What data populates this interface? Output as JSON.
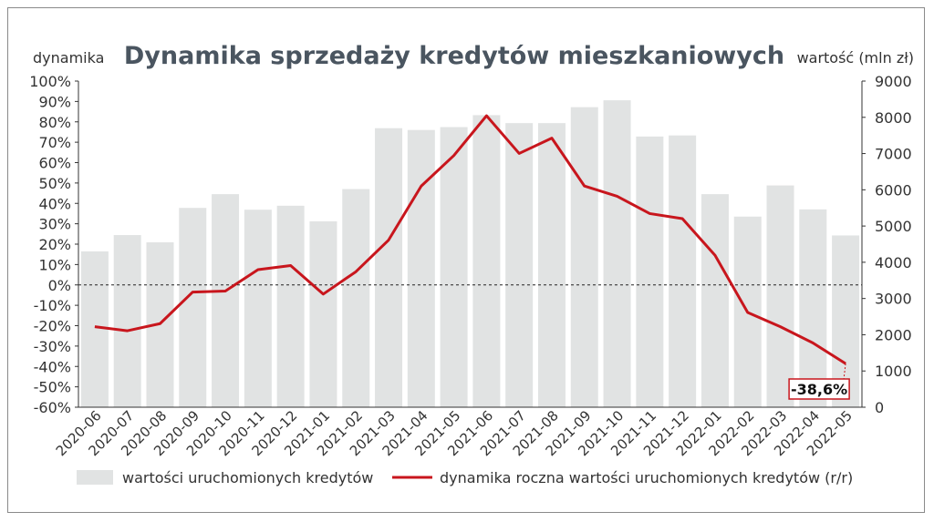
{
  "chart_data": {
    "type": "bar+line",
    "title": "Dynamika sprzedaży kredytów mieszkaniowych",
    "ylabel_left": "dynamika",
    "ylabel_right": "wartość (mln zł)",
    "categories": [
      "2020-06",
      "2020-07",
      "2020-08",
      "2020-09",
      "2020-10",
      "2020-11",
      "2020-12",
      "2021-01",
      "2021-02",
      "2021-03",
      "2021-04",
      "2021-05",
      "2021-06",
      "2021-07",
      "2021-08",
      "2021-09",
      "2021-10",
      "2021-11",
      "2021-12",
      "2022-01",
      "2022-02",
      "2022-03",
      "2022-04",
      "2022-05"
    ],
    "left_axis": {
      "min": -60,
      "max": 100,
      "step": 10,
      "unit": "%",
      "ticks": [
        "100%",
        "90%",
        "80%",
        "70%",
        "60%",
        "50%",
        "40%",
        "30%",
        "20%",
        "10%",
        "0%",
        "-10%",
        "-20%",
        "-30%",
        "-40%",
        "-50%",
        "-60%"
      ]
    },
    "right_axis": {
      "min": 0,
      "max": 9000,
      "step": 1000,
      "ticks": [
        "9000",
        "8000",
        "7000",
        "6000",
        "5000",
        "4000",
        "3000",
        "2000",
        "1000",
        "0"
      ]
    },
    "series": [
      {
        "name": "wartości uruchomionych kredytów",
        "type": "bar",
        "axis": "right",
        "color": "#e1e3e3",
        "values": [
          4300,
          4750,
          4550,
          5500,
          5880,
          5450,
          5560,
          5130,
          6020,
          7700,
          7650,
          7730,
          8060,
          7840,
          7840,
          8280,
          8470,
          7470,
          7500,
          5880,
          5260,
          6120,
          5460,
          4740
        ]
      },
      {
        "name": "dynamika roczna wartości uruchomionych kredytów (r/r)",
        "type": "line",
        "axis": "left",
        "color": "#c8161d",
        "values": [
          -20.5,
          -22.5,
          -19,
          -3.5,
          -3,
          7.5,
          9.5,
          -4.5,
          6.5,
          22,
          48.5,
          63.5,
          83,
          64.5,
          72,
          48.5,
          43.5,
          35,
          32.5,
          14.5,
          -13.5,
          -20.5,
          -28.5,
          -38.6
        ]
      }
    ],
    "annotation": {
      "text": "-38,6%",
      "category": "2022-05"
    },
    "zero_line": {
      "style": "dashed"
    },
    "legend": {
      "position": "bottom"
    }
  }
}
